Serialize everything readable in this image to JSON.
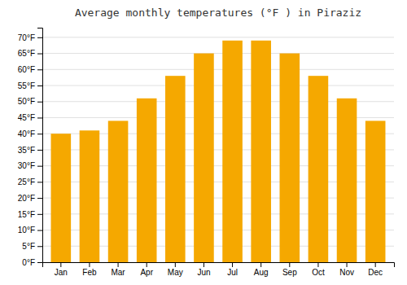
{
  "chart_data": {
    "type": "bar",
    "title": "Average monthly temperatures (°F ) in Piraziz",
    "categories": [
      "Jan",
      "Feb",
      "Mar",
      "Apr",
      "May",
      "Jun",
      "Jul",
      "Aug",
      "Sep",
      "Oct",
      "Nov",
      "Dec"
    ],
    "values": [
      40,
      41,
      44,
      51,
      58,
      65,
      69,
      69,
      65,
      58,
      51,
      44
    ],
    "color": "#F5A800",
    "ylim": [
      0,
      73
    ],
    "yticks": [
      {
        "value": 0,
        "label": "0°F"
      },
      {
        "value": 5,
        "label": "5°F"
      },
      {
        "value": 10,
        "label": "10°F"
      },
      {
        "value": 15,
        "label": "15°F"
      },
      {
        "value": 20,
        "label": "20°F"
      },
      {
        "value": 25,
        "label": "25°F"
      },
      {
        "value": 30,
        "label": "30°F"
      },
      {
        "value": 35,
        "label": "35°F"
      },
      {
        "value": 40,
        "label": "40°F"
      },
      {
        "value": 45,
        "label": "45°F"
      },
      {
        "value": 50,
        "label": "50°F"
      },
      {
        "value": 55,
        "label": "55°F"
      },
      {
        "value": 60,
        "label": "60°F"
      },
      {
        "value": 65,
        "label": "65°F"
      },
      {
        "value": 70,
        "label": "70°F"
      }
    ],
    "grid": true
  }
}
